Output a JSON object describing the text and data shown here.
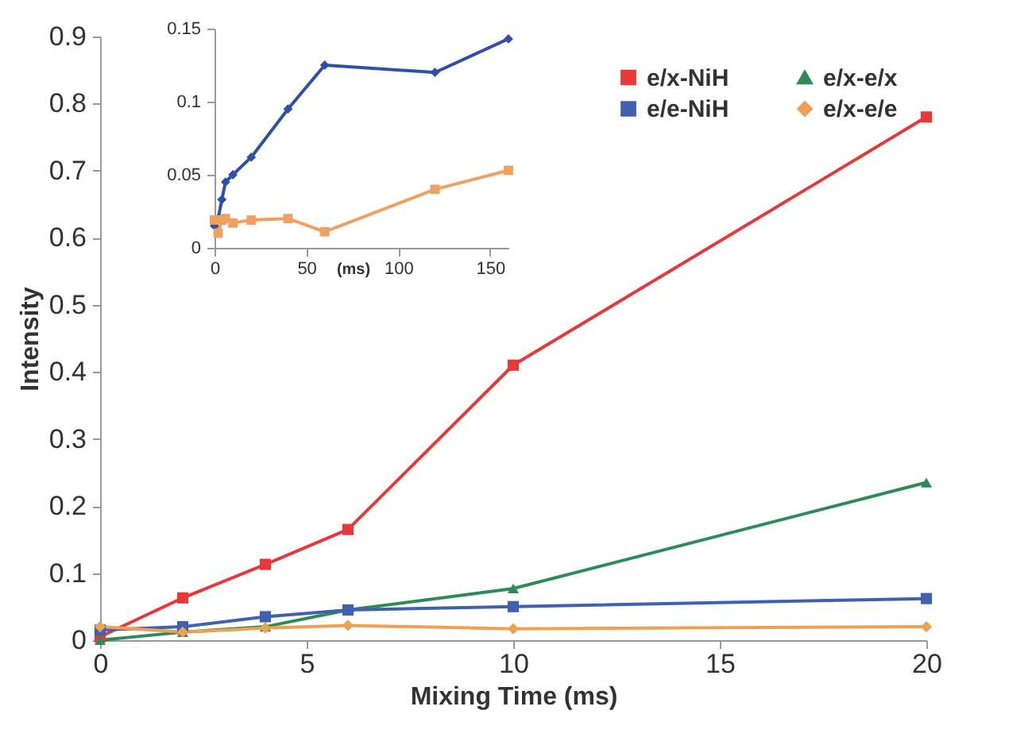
{
  "chart_data": [
    {
      "type": "line",
      "xlabel": "Mixing Time (ms)",
      "ylabel": "Intensity",
      "xlim": [
        0,
        20
      ],
      "ylim": [
        0,
        0.9
      ],
      "xticks": [
        0,
        5,
        10,
        15,
        20
      ],
      "yticks": [
        0,
        0.1,
        0.2,
        0.3,
        0.4,
        0.5,
        0.6,
        0.7,
        0.8,
        0.9
      ],
      "grid": false,
      "legend": "top right",
      "x": [
        0,
        2,
        4,
        6,
        10,
        20
      ],
      "series": [
        {
          "name": "e/x-NiH",
          "color": "#e8393a",
          "marker": "square",
          "values": [
            0.005,
            0.063,
            0.113,
            0.165,
            0.41,
            0.78
          ]
        },
        {
          "name": "e/x-e/x",
          "color": "#2e8b57",
          "marker": "triangle",
          "values": [
            0.0,
            0.012,
            0.02,
            0.045,
            0.077,
            0.235
          ]
        },
        {
          "name": "e/e-NiH",
          "color": "#4060b0",
          "marker": "square",
          "values": [
            0.015,
            0.02,
            0.035,
            0.045,
            0.05,
            0.062
          ]
        },
        {
          "name": "e/x-e/e",
          "color": "#f0a050",
          "marker": "diamond",
          "values": [
            0.02,
            0.012,
            0.018,
            0.022,
            0.017,
            0.02
          ]
        }
      ]
    },
    {
      "type": "line",
      "xlabel": "(ms)",
      "xlim": [
        0,
        160
      ],
      "ylim": [
        0,
        0.15
      ],
      "xticks": [
        0,
        50,
        100,
        150
      ],
      "yticks": [
        0,
        0.05,
        0.1,
        0.15
      ],
      "grid": false,
      "x": [
        0,
        2,
        4,
        6,
        10,
        20,
        40,
        60,
        120,
        160
      ],
      "series": [
        {
          "color": "#3050a8",
          "marker": "diamond",
          "values": [
            0.015,
            0.02,
            0.033,
            0.045,
            0.05,
            0.062,
            0.095,
            0.125,
            0.12,
            0.143
          ]
        },
        {
          "color": "#f0a060",
          "marker": "square",
          "values": [
            0.019,
            0.01,
            0.019,
            0.02,
            0.017,
            0.019,
            0.02,
            0.011,
            0.04,
            0.053
          ]
        }
      ]
    }
  ]
}
